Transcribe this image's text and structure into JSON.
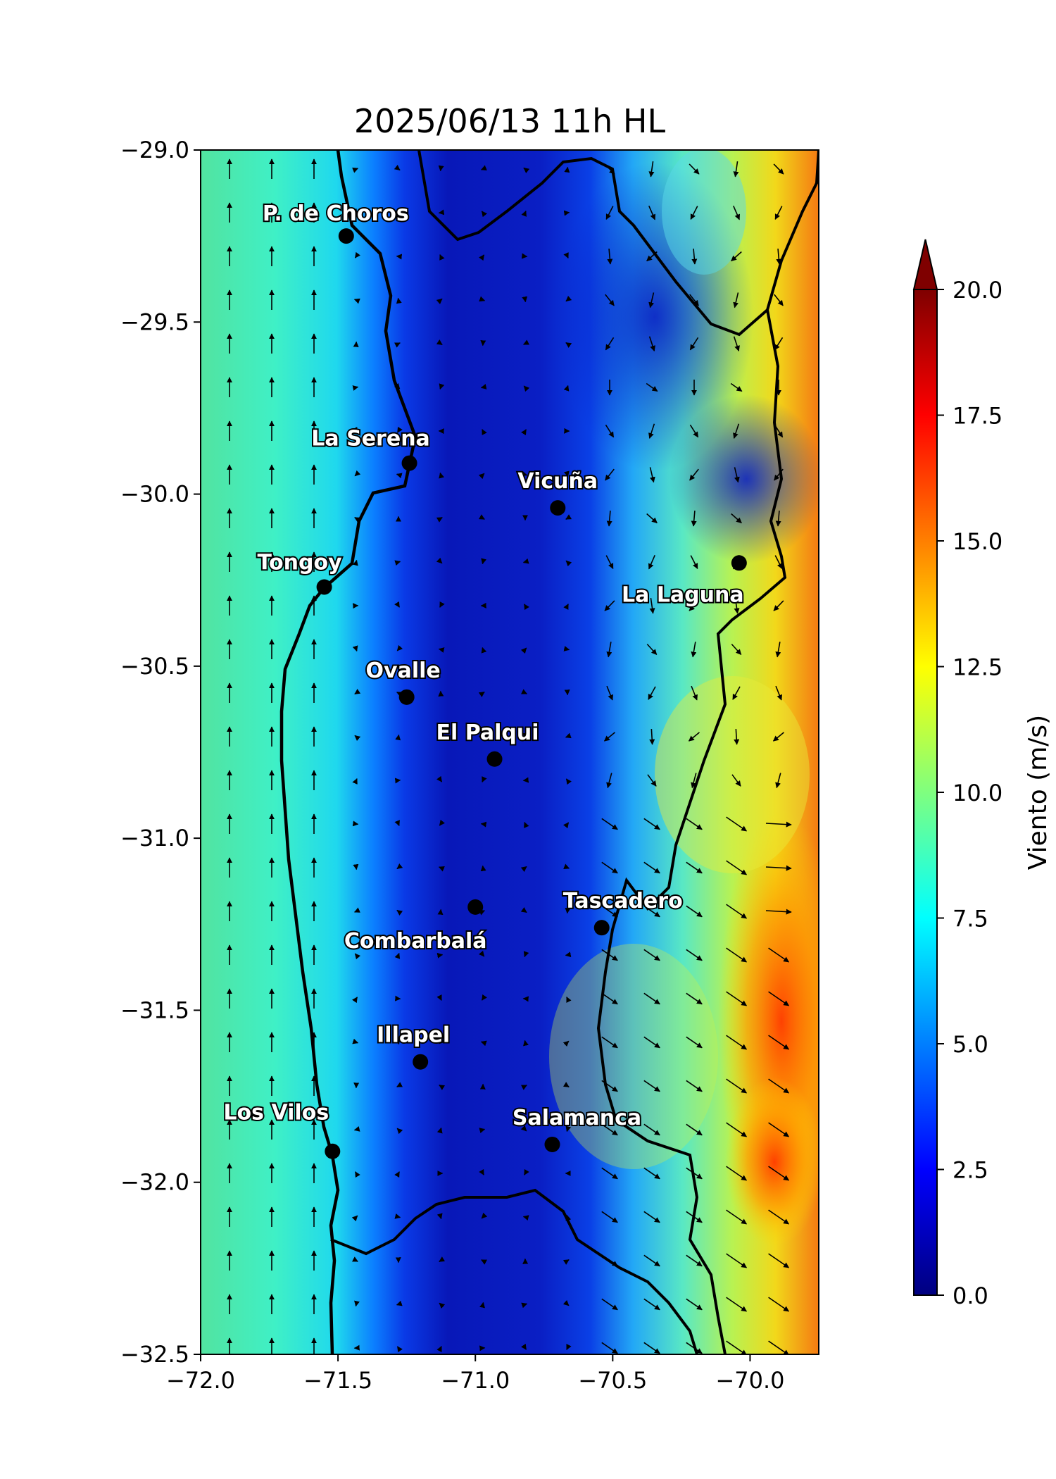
{
  "title": "2025/06/13 11h HL",
  "map": {
    "x_range": [
      -72.0,
      -69.75
    ],
    "y_range": [
      -32.5,
      -29.0
    ],
    "x_ticks": [
      "−72.0",
      "−71.5",
      "−71.0",
      "−70.5",
      "−70.0"
    ],
    "x_tick_values": [
      -72.0,
      -71.5,
      -71.0,
      -70.5,
      -70.0
    ],
    "y_ticks": [
      "−29.0",
      "−29.5",
      "−30.0",
      "−30.5",
      "−31.0",
      "−31.5",
      "−32.0",
      "−32.5"
    ],
    "y_tick_values": [
      -29.0,
      -29.5,
      -30.0,
      -30.5,
      -31.0,
      -31.5,
      -32.0,
      -32.5
    ],
    "grid": false
  },
  "cities": [
    {
      "name": "P. de Choros",
      "lon": -71.47,
      "lat": -29.25
    },
    {
      "name": "La Serena",
      "lon": -71.24,
      "lat": -29.91
    },
    {
      "name": "Vicuña",
      "lon": -70.7,
      "lat": -30.04
    },
    {
      "name": "Tongoy",
      "lon": -71.55,
      "lat": -30.27
    },
    {
      "name": "La Laguna",
      "lon": -70.04,
      "lat": -30.2
    },
    {
      "name": "Ovalle",
      "lon": -71.25,
      "lat": -30.59
    },
    {
      "name": "El Palqui",
      "lon": -70.93,
      "lat": -30.77
    },
    {
      "name": "Combarbalá",
      "lon": -71.0,
      "lat": -31.2
    },
    {
      "name": "Tascadero",
      "lon": -70.54,
      "lat": -31.26
    },
    {
      "name": "Illapel",
      "lon": -71.2,
      "lat": -31.65
    },
    {
      "name": "Los Vilos",
      "lon": -71.52,
      "lat": -31.91
    },
    {
      "name": "Salamanca",
      "lon": -70.72,
      "lat": -31.89
    }
  ],
  "colorbar": {
    "label": "Viento (m/s)",
    "min": 0.0,
    "max": 20.0,
    "extend": "max",
    "ticks": [
      "0.0",
      "2.5",
      "5.0",
      "7.5",
      "10.0",
      "12.5",
      "15.0",
      "17.5",
      "20.0"
    ],
    "tick_values": [
      0,
      2.5,
      5,
      7.5,
      10,
      12.5,
      15,
      17.5,
      20
    ],
    "colormap": "jet",
    "colors": [
      "#00007f",
      "#0000ff",
      "#007fff",
      "#00ffff",
      "#7fff7f",
      "#ffff00",
      "#ff7f00",
      "#ff0000",
      "#7f0000"
    ]
  },
  "chart_data": {
    "type": "heatmap",
    "title": "2025/06/13 11h HL",
    "xlabel": "",
    "ylabel": "",
    "xlim": [
      -72.0,
      -69.75
    ],
    "ylim": [
      -32.5,
      -29.0
    ],
    "colorbar_label": "Viento (m/s)",
    "value_range": [
      0,
      20
    ],
    "regions": [
      {
        "area": "ocean",
        "lon_range": [
          -72.0,
          -71.6
        ],
        "wind_speed": 9.0,
        "direction": "north"
      },
      {
        "area": "coastal_inland",
        "lon_range": [
          -71.6,
          -70.6
        ],
        "wind_speed": 1.5,
        "direction": "variable"
      },
      {
        "area": "andes_foothills",
        "lon_range": [
          -70.6,
          -70.2
        ],
        "wind_speed": 9.0,
        "direction": "southeast"
      },
      {
        "area": "andes_crest",
        "lon_range": [
          -70.0,
          -69.75
        ],
        "wind_speed": 16.5,
        "direction": "east"
      }
    ]
  }
}
